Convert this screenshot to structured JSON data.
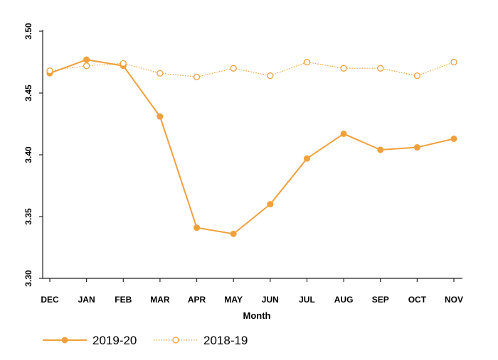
{
  "colors": {
    "series_2019_20": "#F0A03C",
    "series_2018_19": "#F0A03C",
    "axis": "#222222"
  },
  "chart_data": {
    "type": "line",
    "xlabel": "Month",
    "ylabel": "",
    "ylim": [
      3.3,
      3.5
    ],
    "yticks": [
      3.3,
      3.35,
      3.4,
      3.45,
      3.5
    ],
    "ytick_labels": [
      "3.30",
      "3.35",
      "3.40",
      "3.45",
      "3.50"
    ],
    "categories": [
      "DEC",
      "JAN",
      "FEB",
      "MAR",
      "APR",
      "MAY",
      "JUN",
      "JUL",
      "AUG",
      "SEP",
      "OCT",
      "NOV"
    ],
    "series": [
      {
        "name": "2019-20",
        "marker": "filled-circle",
        "line": "solid",
        "values": [
          3.466,
          3.477,
          3.472,
          3.431,
          3.341,
          3.336,
          3.36,
          3.397,
          3.417,
          3.404,
          3.406,
          3.413
        ]
      },
      {
        "name": "2018-19",
        "marker": "hollow-circle",
        "line": "dotted",
        "values": [
          3.468,
          3.472,
          3.474,
          3.466,
          3.463,
          3.47,
          3.464,
          3.475,
          3.47,
          3.47,
          3.464,
          3.475
        ]
      }
    ],
    "legend_position": "bottom-left",
    "grid": false
  }
}
